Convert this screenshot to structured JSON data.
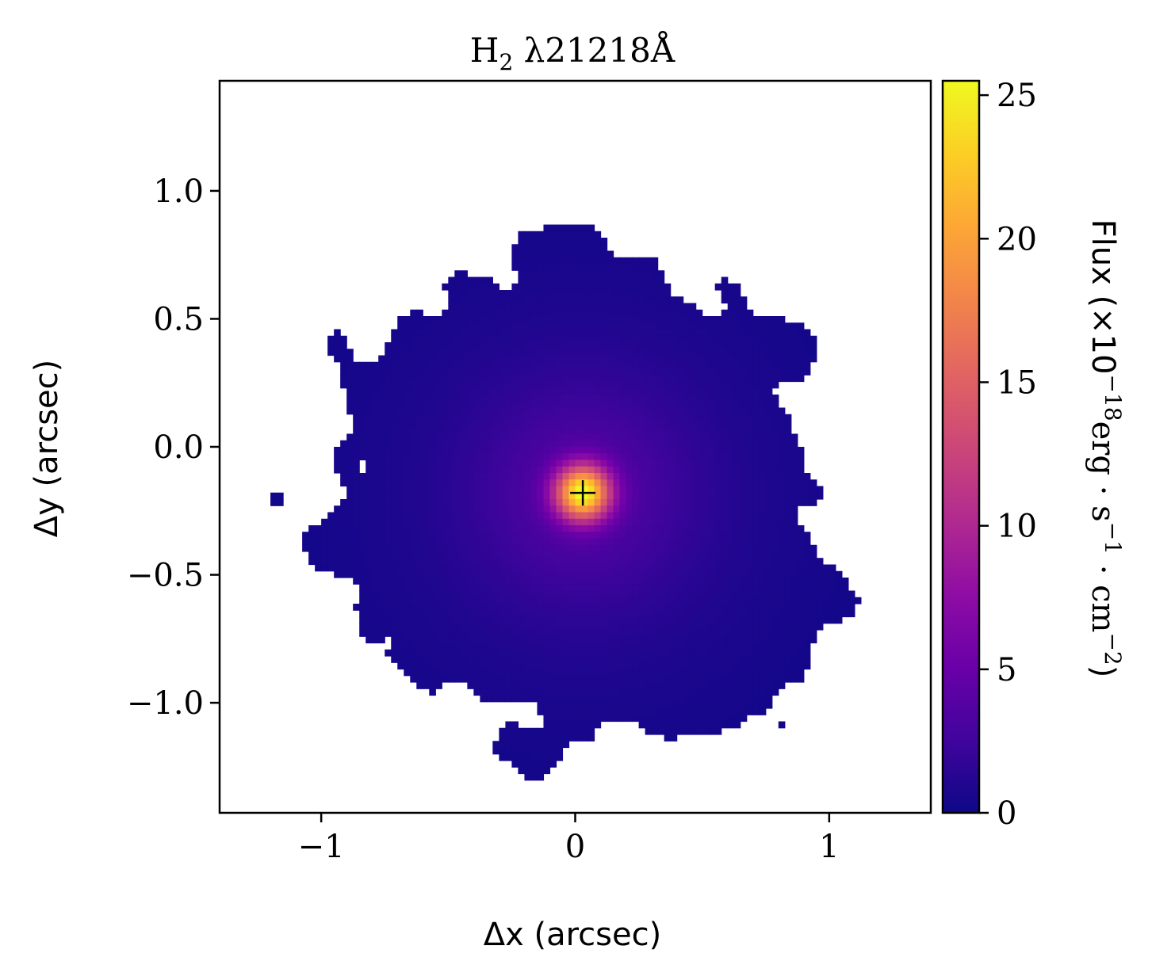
{
  "chart_data": {
    "type": "heatmap",
    "title": {
      "main": "H",
      "sub": "2",
      "rest": " λ21218Å"
    },
    "xlabel": "Δx (arcsec)",
    "ylabel": "Δy (arcsec)",
    "xlim": [
      -1.4,
      1.4
    ],
    "ylim": [
      -1.43,
      1.43
    ],
    "xticks": [
      -1,
      0,
      1
    ],
    "xtick_labels": [
      "−1",
      "0",
      "1"
    ],
    "yticks": [
      1.0,
      0.5,
      0.0,
      -0.5,
      -1.0
    ],
    "ytick_labels": [
      "1.0",
      "0.5",
      "0.0",
      "−0.5",
      "−1.0"
    ],
    "colormap": "plasma",
    "colorbar": {
      "range": [
        0,
        25.5
      ],
      "ticks": [
        0,
        5,
        10,
        15,
        20,
        25
      ],
      "tick_labels": [
        "0",
        "5",
        "10",
        "15",
        "20",
        "25"
      ],
      "label": {
        "prefix": "Flux (×10",
        "exp1": "−18",
        "mid1": "erg · s",
        "exp2": "−1",
        "mid2": " · cm",
        "exp3": "−2",
        "suffix": ")"
      }
    },
    "peak": {
      "x": 0.03,
      "y": -0.18,
      "value": 25.0
    },
    "marker": {
      "x": 0.03,
      "y": -0.18,
      "symbol": "+"
    },
    "masked_color": "#ffffff",
    "grid": false
  }
}
